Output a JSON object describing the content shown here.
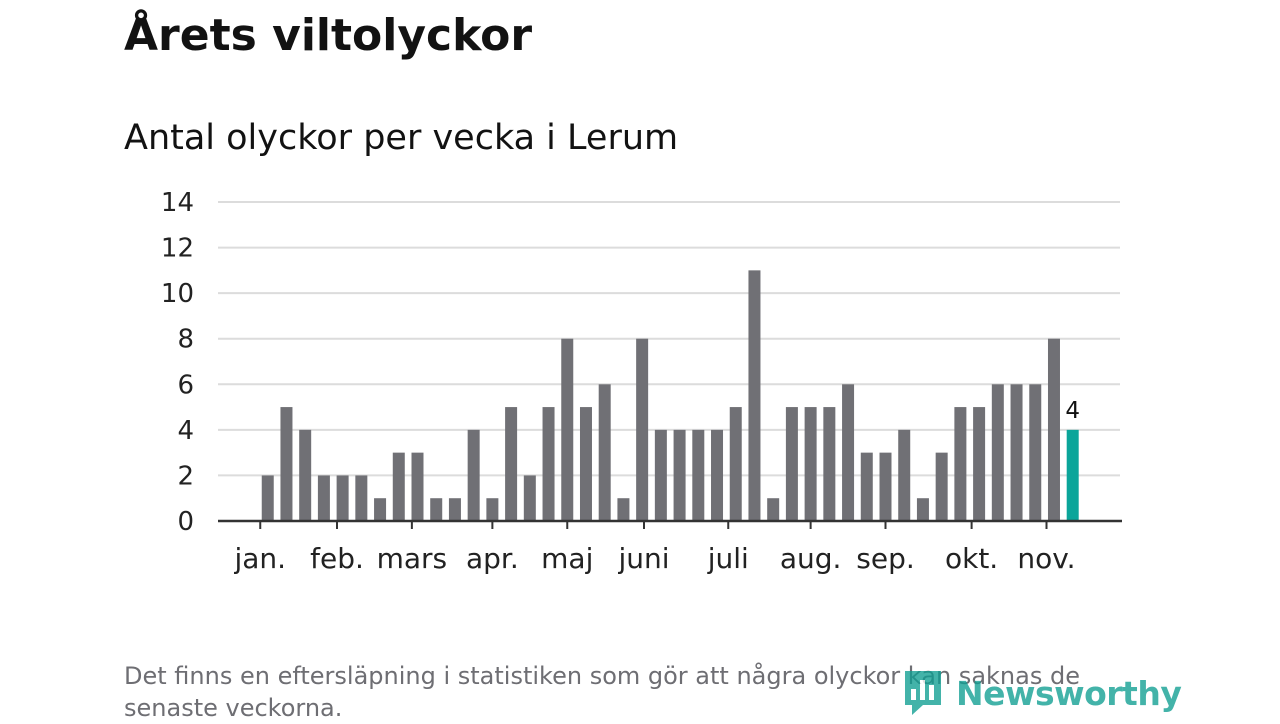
{
  "title": "Årets viltolyckor",
  "subtitle": "Antal olyckor per vecka i Lerum",
  "footnote": "Det finns en eftersläpning i statistiken som gör att några olyckor kan saknas de senaste veckorna.",
  "brand": {
    "name": "Newsworthy",
    "icon": "newsworthy-logo-icon",
    "color": "#0f9e92"
  },
  "colors": {
    "bar": "#707075",
    "highlight": "#0ba59a",
    "grid": "#dcdcdc",
    "axis": "#333333"
  },
  "chart_data": {
    "type": "bar",
    "title": "Antal olyckor per vecka i Lerum",
    "xlabel": "",
    "ylabel": "",
    "ylim": [
      0,
      14
    ],
    "yticks": [
      0,
      2,
      4,
      6,
      8,
      10,
      12,
      14
    ],
    "grid": true,
    "weeks": [
      1,
      2,
      3,
      4,
      5,
      6,
      7,
      8,
      9,
      10,
      11,
      12,
      13,
      14,
      15,
      16,
      17,
      18,
      19,
      20,
      21,
      22,
      23,
      24,
      25,
      26,
      27,
      28,
      29,
      30,
      31,
      32,
      33,
      34,
      35,
      36,
      37,
      38,
      39,
      40,
      41,
      42,
      43,
      44,
      45,
      46
    ],
    "values": [
      0,
      0,
      2,
      5,
      4,
      2,
      2,
      2,
      1,
      3,
      3,
      1,
      1,
      4,
      1,
      5,
      2,
      5,
      8,
      5,
      6,
      1,
      8,
      4,
      4,
      4,
      4,
      5,
      11,
      1,
      5,
      5,
      5,
      6,
      3,
      3,
      4,
      1,
      3,
      5,
      5,
      6,
      6,
      6,
      8,
      4
    ],
    "highlight_index": 45,
    "highlight_label": "4",
    "month_labels": [
      {
        "label": "jan.",
        "week": 2.6
      },
      {
        "label": "feb.",
        "week": 6.7
      },
      {
        "label": "mars",
        "week": 10.7
      },
      {
        "label": "apr.",
        "week": 15.0
      },
      {
        "label": "maj",
        "week": 19.0
      },
      {
        "label": "juni",
        "week": 23.1
      },
      {
        "label": "juli",
        "week": 27.6
      },
      {
        "label": "aug.",
        "week": 32.0
      },
      {
        "label": "sep.",
        "week": 36.0
      },
      {
        "label": "okt.",
        "week": 40.6
      },
      {
        "label": "nov.",
        "week": 44.6
      }
    ]
  }
}
